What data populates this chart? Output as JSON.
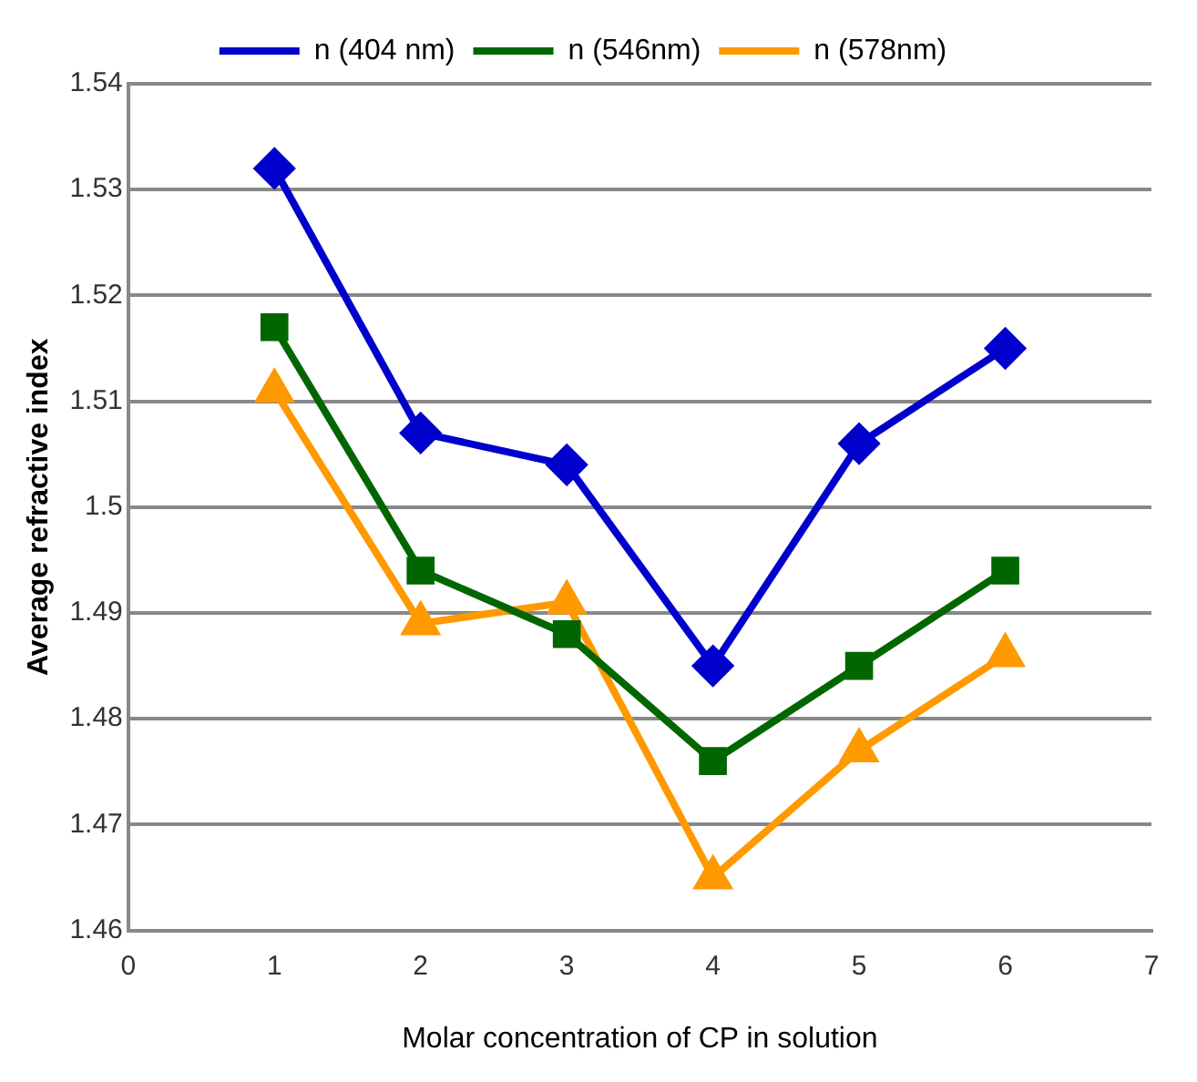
{
  "chart_data": {
    "type": "line",
    "xlabel": "Molar concentration of CP in solution",
    "ylabel": "Average refractive index",
    "x": [
      1,
      2,
      3,
      4,
      5,
      6
    ],
    "xlim": [
      0,
      7
    ],
    "xticks": [
      0,
      1,
      2,
      3,
      4,
      5,
      6,
      7
    ],
    "ylim": [
      1.46,
      1.54
    ],
    "yticks": [
      1.46,
      1.47,
      1.48,
      1.49,
      {
        "value": 1.5,
        "label": "1.5"
      },
      1.51,
      1.52,
      1.53,
      1.54
    ],
    "grid": "y",
    "legend": "top",
    "series": [
      {
        "name": "n (404 nm)",
        "color": "#0000cc",
        "marker": "diamond",
        "values": [
          1.532,
          1.507,
          1.504,
          1.485,
          1.506,
          1.515
        ]
      },
      {
        "name": "n (546nm)",
        "color": "#006600",
        "marker": "square",
        "values": [
          1.517,
          1.494,
          1.488,
          1.476,
          1.485,
          1.494
        ]
      },
      {
        "name": "n (578nm)",
        "color": "#ff9900",
        "marker": "triangle",
        "values": [
          1.511,
          1.489,
          1.491,
          1.465,
          1.477,
          1.486
        ]
      }
    ]
  }
}
